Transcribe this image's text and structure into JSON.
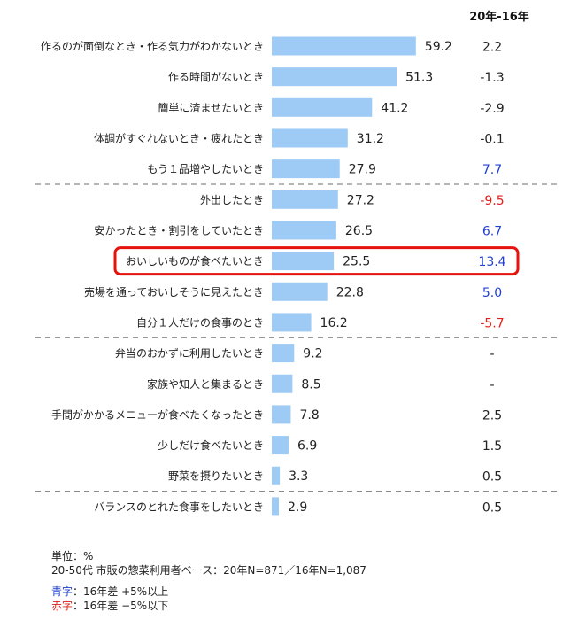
{
  "chart_data": {
    "type": "bar",
    "orientation": "horizontal",
    "categories": [
      "作るのが面倒なとき・作る気力がわかないとき",
      "作る時間がないとき",
      "簡単に済ませたいとき",
      "体調がすぐれないとき・疲れたとき",
      "もう１品増やしたいとき",
      "外出したとき",
      "安かったとき・割引をしていたとき",
      "おいしいものが食べたいとき",
      "売場を通っておいしそうに見えたとき",
      "自分１人だけの食事のとき",
      "弁当のおかずに利用したいとき",
      "家族や知人と集まるとき",
      "手間がかかるメニューが食べたくなったとき",
      "少しだけ食べたいとき",
      "野菜を摂りたいとき",
      "バランスのとれた食事をしたいとき"
    ],
    "values": [
      59.2,
      51.3,
      41.2,
      31.2,
      27.9,
      27.2,
      26.5,
      25.5,
      22.8,
      16.2,
      9.2,
      8.5,
      7.8,
      6.9,
      3.3,
      2.9
    ],
    "value_labels": [
      "59.2",
      "51.3",
      "41.2",
      "31.2",
      "27.9",
      "27.2",
      "26.5",
      "25.5",
      "22.8",
      "16.2",
      "9.2",
      "8.5",
      "7.8",
      "6.9",
      "3.3",
      "2.9"
    ],
    "diff_header": "20年-16年",
    "diff_labels": [
      "2.2",
      "-1.3",
      "-2.9",
      "-0.1",
      "7.7",
      "-9.5",
      "6.7",
      "13.4",
      "5.0",
      "-5.7",
      "-",
      "-",
      "2.5",
      "1.5",
      "0.5",
      "0.5"
    ],
    "diff_status": [
      "none",
      "none",
      "none",
      "none",
      "blue",
      "red",
      "blue",
      "blue",
      "blue",
      "red",
      "none",
      "none",
      "none",
      "none",
      "none",
      "none"
    ],
    "highlight_index": 7,
    "group_breaks_after": [
      4,
      9,
      14
    ],
    "xlim": [
      0,
      100
    ],
    "colors": {
      "bar": "#9dcbf5",
      "blue": "#1f3fd0",
      "red": "#e0201a",
      "neutral": "#222222",
      "highlight": "#e6120e",
      "divider": "#8a8a8a"
    }
  },
  "notes": {
    "unit": "単位：%",
    "base": "20-50代 市販の惣菜利用者ベース：20年N=871／16年N=1,087"
  },
  "legend": {
    "blue_word": "青字",
    "blue_text": "：16年差 +5%以上",
    "red_word": "赤字",
    "red_text": "：16年差 −5%以下"
  }
}
